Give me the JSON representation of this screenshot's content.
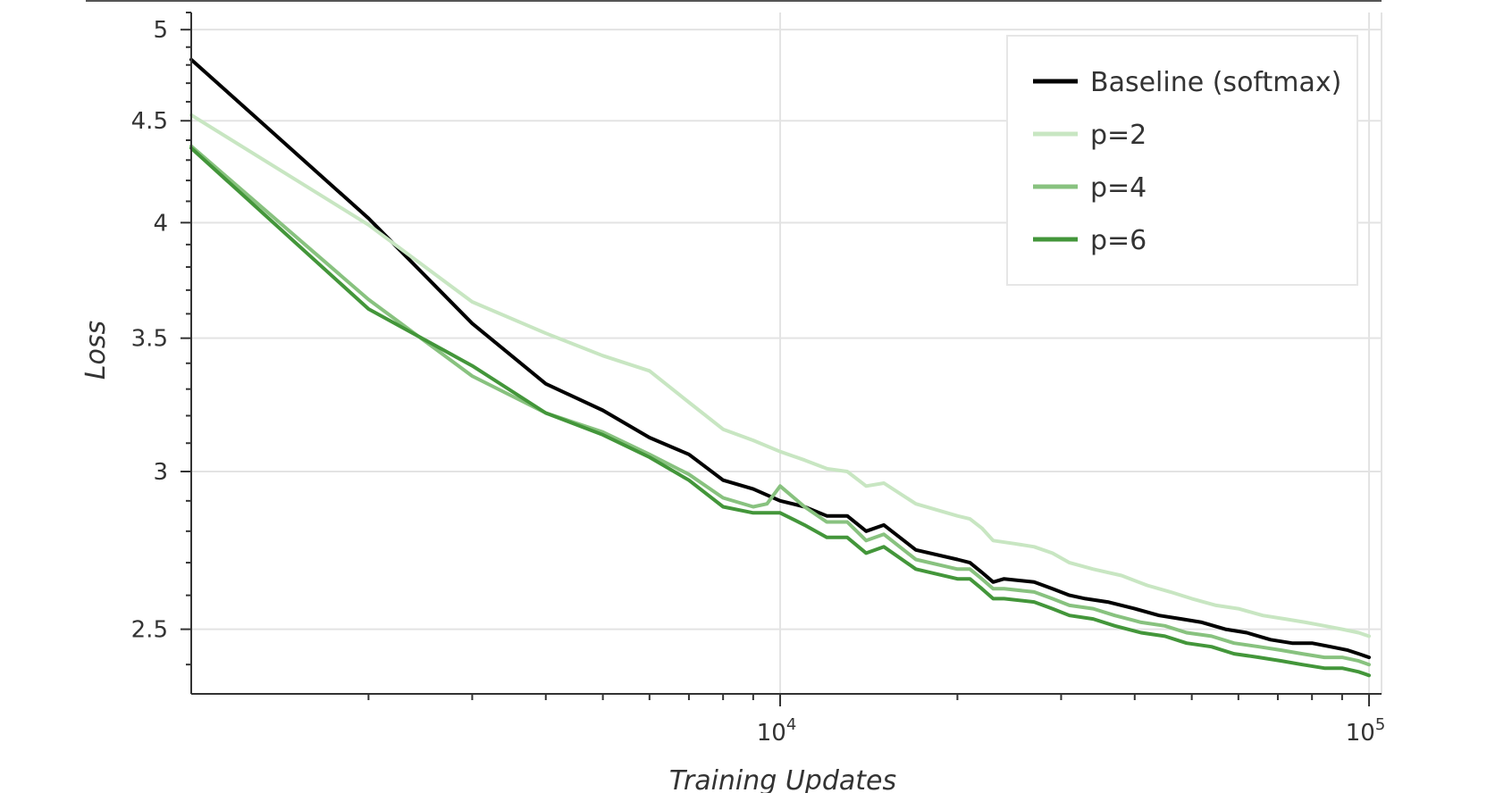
{
  "chart_data": {
    "type": "line",
    "xlabel": "Training Updates",
    "ylabel": "Loss",
    "x_scale": "log",
    "y_scale": "log",
    "xlim": [
      1000,
      105000
    ],
    "ylim": [
      2.32,
      5.1
    ],
    "x_major_ticks": [
      {
        "value": 10000,
        "base": "10",
        "exp": "4"
      },
      {
        "value": 100000,
        "base": "10",
        "exp": "5"
      }
    ],
    "y_ticks": [
      {
        "value": 2.5,
        "label": "2.5"
      },
      {
        "value": 3,
        "label": "3"
      },
      {
        "value": 3.5,
        "label": "3.5"
      },
      {
        "value": 4,
        "label": "4"
      },
      {
        "value": 4.5,
        "label": "4.5"
      },
      {
        "value": 5,
        "label": "5"
      }
    ],
    "grid": true,
    "legend_position": "top-right",
    "series": [
      {
        "name": "Baseline (softmax)",
        "color": "#000000",
        "points": [
          [
            1000,
            4.83
          ],
          [
            2000,
            4.02
          ],
          [
            3000,
            3.56
          ],
          [
            4000,
            3.32
          ],
          [
            5000,
            3.22
          ],
          [
            6000,
            3.12
          ],
          [
            7000,
            3.06
          ],
          [
            8000,
            2.97
          ],
          [
            9000,
            2.94
          ],
          [
            10000,
            2.9
          ],
          [
            11000,
            2.88
          ],
          [
            12000,
            2.85
          ],
          [
            13000,
            2.85
          ],
          [
            14000,
            2.8
          ],
          [
            15000,
            2.82
          ],
          [
            17000,
            2.74
          ],
          [
            20000,
            2.71
          ],
          [
            21000,
            2.7
          ],
          [
            22000,
            2.67
          ],
          [
            23000,
            2.64
          ],
          [
            24000,
            2.65
          ],
          [
            27000,
            2.64
          ],
          [
            29000,
            2.62
          ],
          [
            31000,
            2.6
          ],
          [
            33000,
            2.59
          ],
          [
            36000,
            2.58
          ],
          [
            40000,
            2.56
          ],
          [
            44000,
            2.54
          ],
          [
            48000,
            2.53
          ],
          [
            52000,
            2.52
          ],
          [
            57000,
            2.5
          ],
          [
            62000,
            2.49
          ],
          [
            68000,
            2.47
          ],
          [
            74000,
            2.46
          ],
          [
            80000,
            2.46
          ],
          [
            86000,
            2.45
          ],
          [
            92000,
            2.44
          ],
          [
            96000,
            2.43
          ],
          [
            100000,
            2.42
          ]
        ]
      },
      {
        "name": "p=2",
        "color": "#c8e6c2",
        "points": [
          [
            1000,
            4.53
          ],
          [
            2000,
            3.99
          ],
          [
            3000,
            3.65
          ],
          [
            4000,
            3.52
          ],
          [
            5000,
            3.43
          ],
          [
            6000,
            3.37
          ],
          [
            7000,
            3.25
          ],
          [
            8000,
            3.15
          ],
          [
            9000,
            3.11
          ],
          [
            10000,
            3.07
          ],
          [
            11000,
            3.04
          ],
          [
            12000,
            3.01
          ],
          [
            13000,
            3.0
          ],
          [
            14000,
            2.95
          ],
          [
            15000,
            2.96
          ],
          [
            17000,
            2.89
          ],
          [
            20000,
            2.85
          ],
          [
            21000,
            2.84
          ],
          [
            22000,
            2.81
          ],
          [
            23000,
            2.77
          ],
          [
            25000,
            2.76
          ],
          [
            27000,
            2.75
          ],
          [
            29000,
            2.73
          ],
          [
            31000,
            2.7
          ],
          [
            34000,
            2.68
          ],
          [
            38000,
            2.66
          ],
          [
            42000,
            2.63
          ],
          [
            46000,
            2.61
          ],
          [
            50000,
            2.59
          ],
          [
            55000,
            2.57
          ],
          [
            60000,
            2.56
          ],
          [
            66000,
            2.54
          ],
          [
            72000,
            2.53
          ],
          [
            78000,
            2.52
          ],
          [
            84000,
            2.51
          ],
          [
            90000,
            2.5
          ],
          [
            96000,
            2.49
          ],
          [
            100000,
            2.48
          ]
        ]
      },
      {
        "name": "p=4",
        "color": "#88c27f",
        "points": [
          [
            1000,
            4.37
          ],
          [
            2000,
            3.66
          ],
          [
            3000,
            3.35
          ],
          [
            4000,
            3.21
          ],
          [
            5000,
            3.14
          ],
          [
            6000,
            3.06
          ],
          [
            7000,
            2.99
          ],
          [
            8000,
            2.91
          ],
          [
            9000,
            2.88
          ],
          [
            9500,
            2.89
          ],
          [
            10000,
            2.95
          ],
          [
            11000,
            2.88
          ],
          [
            12000,
            2.83
          ],
          [
            13000,
            2.83
          ],
          [
            14000,
            2.77
          ],
          [
            15000,
            2.79
          ],
          [
            17000,
            2.71
          ],
          [
            20000,
            2.68
          ],
          [
            21000,
            2.68
          ],
          [
            22000,
            2.65
          ],
          [
            23000,
            2.62
          ],
          [
            24000,
            2.62
          ],
          [
            27000,
            2.61
          ],
          [
            29000,
            2.59
          ],
          [
            31000,
            2.57
          ],
          [
            34000,
            2.56
          ],
          [
            37000,
            2.54
          ],
          [
            41000,
            2.52
          ],
          [
            45000,
            2.51
          ],
          [
            49000,
            2.49
          ],
          [
            54000,
            2.48
          ],
          [
            59000,
            2.46
          ],
          [
            65000,
            2.45
          ],
          [
            71000,
            2.44
          ],
          [
            77000,
            2.43
          ],
          [
            84000,
            2.42
          ],
          [
            90000,
            2.42
          ],
          [
            96000,
            2.41
          ],
          [
            100000,
            2.4
          ]
        ]
      },
      {
        "name": "p=6",
        "color": "#43963a",
        "points": [
          [
            1000,
            4.36
          ],
          [
            2000,
            3.62
          ],
          [
            3000,
            3.39
          ],
          [
            4000,
            3.21
          ],
          [
            5000,
            3.13
          ],
          [
            6000,
            3.05
          ],
          [
            7000,
            2.97
          ],
          [
            8000,
            2.88
          ],
          [
            9000,
            2.86
          ],
          [
            10000,
            2.86
          ],
          [
            11000,
            2.82
          ],
          [
            12000,
            2.78
          ],
          [
            13000,
            2.78
          ],
          [
            14000,
            2.73
          ],
          [
            15000,
            2.75
          ],
          [
            17000,
            2.68
          ],
          [
            20000,
            2.65
          ],
          [
            21000,
            2.65
          ],
          [
            22000,
            2.62
          ],
          [
            23000,
            2.59
          ],
          [
            24000,
            2.59
          ],
          [
            27000,
            2.58
          ],
          [
            29000,
            2.56
          ],
          [
            31000,
            2.54
          ],
          [
            34000,
            2.53
          ],
          [
            37000,
            2.51
          ],
          [
            41000,
            2.49
          ],
          [
            45000,
            2.48
          ],
          [
            49000,
            2.46
          ],
          [
            54000,
            2.45
          ],
          [
            59000,
            2.43
          ],
          [
            65000,
            2.42
          ],
          [
            71000,
            2.41
          ],
          [
            77000,
            2.4
          ],
          [
            84000,
            2.39
          ],
          [
            90000,
            2.39
          ],
          [
            96000,
            2.38
          ],
          [
            100000,
            2.37
          ]
        ]
      }
    ]
  }
}
